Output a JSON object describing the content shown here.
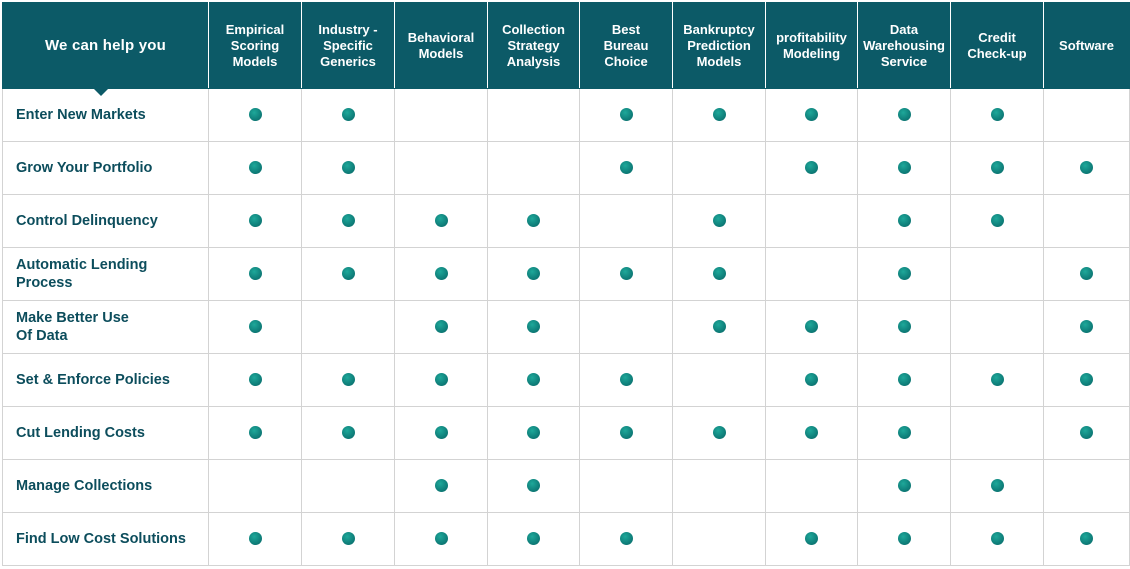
{
  "header": {
    "corner_label": "We can help you",
    "columns": [
      "Empirical Scoring Models",
      "Industry - Specific Generics",
      "Behavioral Models",
      "Collection Strategy Analysis",
      "Best Bureau Choice",
      "Bankruptcy Prediction Models",
      "profitability Modeling",
      "Data Warehousing Service",
      "Credit Check-up",
      "Software"
    ],
    "column_lines": [
      [
        "Empirical",
        "Scoring",
        "Models"
      ],
      [
        "Industry -",
        "Specific",
        "Generics"
      ],
      [
        "Behavioral",
        "Models"
      ],
      [
        "Collection",
        "Strategy",
        "Analysis"
      ],
      [
        "Best",
        "Bureau",
        "Choice"
      ],
      [
        "Bankruptcy",
        "Prediction",
        "Models"
      ],
      [
        "profitability",
        "Modeling"
      ],
      [
        "Data",
        "Warehousing",
        "Service"
      ],
      [
        "Credit",
        "Check-up"
      ],
      [
        "Software"
      ]
    ]
  },
  "rows": [
    {
      "label": "Enter New Markets",
      "label_lines": [
        "Enter New Markets"
      ],
      "marks": [
        true,
        true,
        false,
        false,
        true,
        true,
        true,
        true,
        true,
        false
      ]
    },
    {
      "label": "Grow Your Portfolio",
      "label_lines": [
        "Grow Your Portfolio"
      ],
      "marks": [
        true,
        true,
        false,
        false,
        true,
        false,
        true,
        true,
        true,
        true
      ]
    },
    {
      "label": "Control Delinquency",
      "label_lines": [
        "Control Delinquency"
      ],
      "marks": [
        true,
        true,
        true,
        true,
        false,
        true,
        false,
        true,
        true,
        false
      ]
    },
    {
      "label": "Automatic Lending Process",
      "label_lines": [
        "Automatic Lending",
        "Process"
      ],
      "marks": [
        true,
        true,
        true,
        true,
        true,
        true,
        false,
        true,
        false,
        true
      ]
    },
    {
      "label": "Make Better Use Of Data",
      "label_lines": [
        "Make Better Use",
        "Of Data"
      ],
      "marks": [
        true,
        false,
        true,
        true,
        false,
        true,
        true,
        true,
        false,
        true
      ]
    },
    {
      "label": "Set & Enforce Policies",
      "label_lines": [
        "Set & Enforce Policies"
      ],
      "marks": [
        true,
        true,
        true,
        true,
        true,
        false,
        true,
        true,
        true,
        true
      ]
    },
    {
      "label": "Cut Lending Costs",
      "label_lines": [
        "Cut Lending Costs"
      ],
      "marks": [
        true,
        true,
        true,
        true,
        true,
        true,
        true,
        true,
        false,
        true
      ]
    },
    {
      "label": "Manage Collections",
      "label_lines": [
        "Manage Collections"
      ],
      "marks": [
        false,
        false,
        true,
        true,
        false,
        false,
        false,
        true,
        true,
        false
      ]
    },
    {
      "label": "Find Low Cost Solutions",
      "label_lines": [
        "Find Low Cost Solutions"
      ],
      "marks": [
        true,
        true,
        true,
        true,
        true,
        false,
        true,
        true,
        true,
        true
      ]
    }
  ],
  "colors": {
    "header_background": "#0c5a67",
    "header_text": "#ffffff",
    "row_label_text": "#0c4d5c",
    "dot": "#0f7f7a",
    "grid_line": "#d3d3d3"
  },
  "icons": {
    "mark": "filled-circle-dot",
    "header_pointer": "triangle-down-pointer"
  }
}
